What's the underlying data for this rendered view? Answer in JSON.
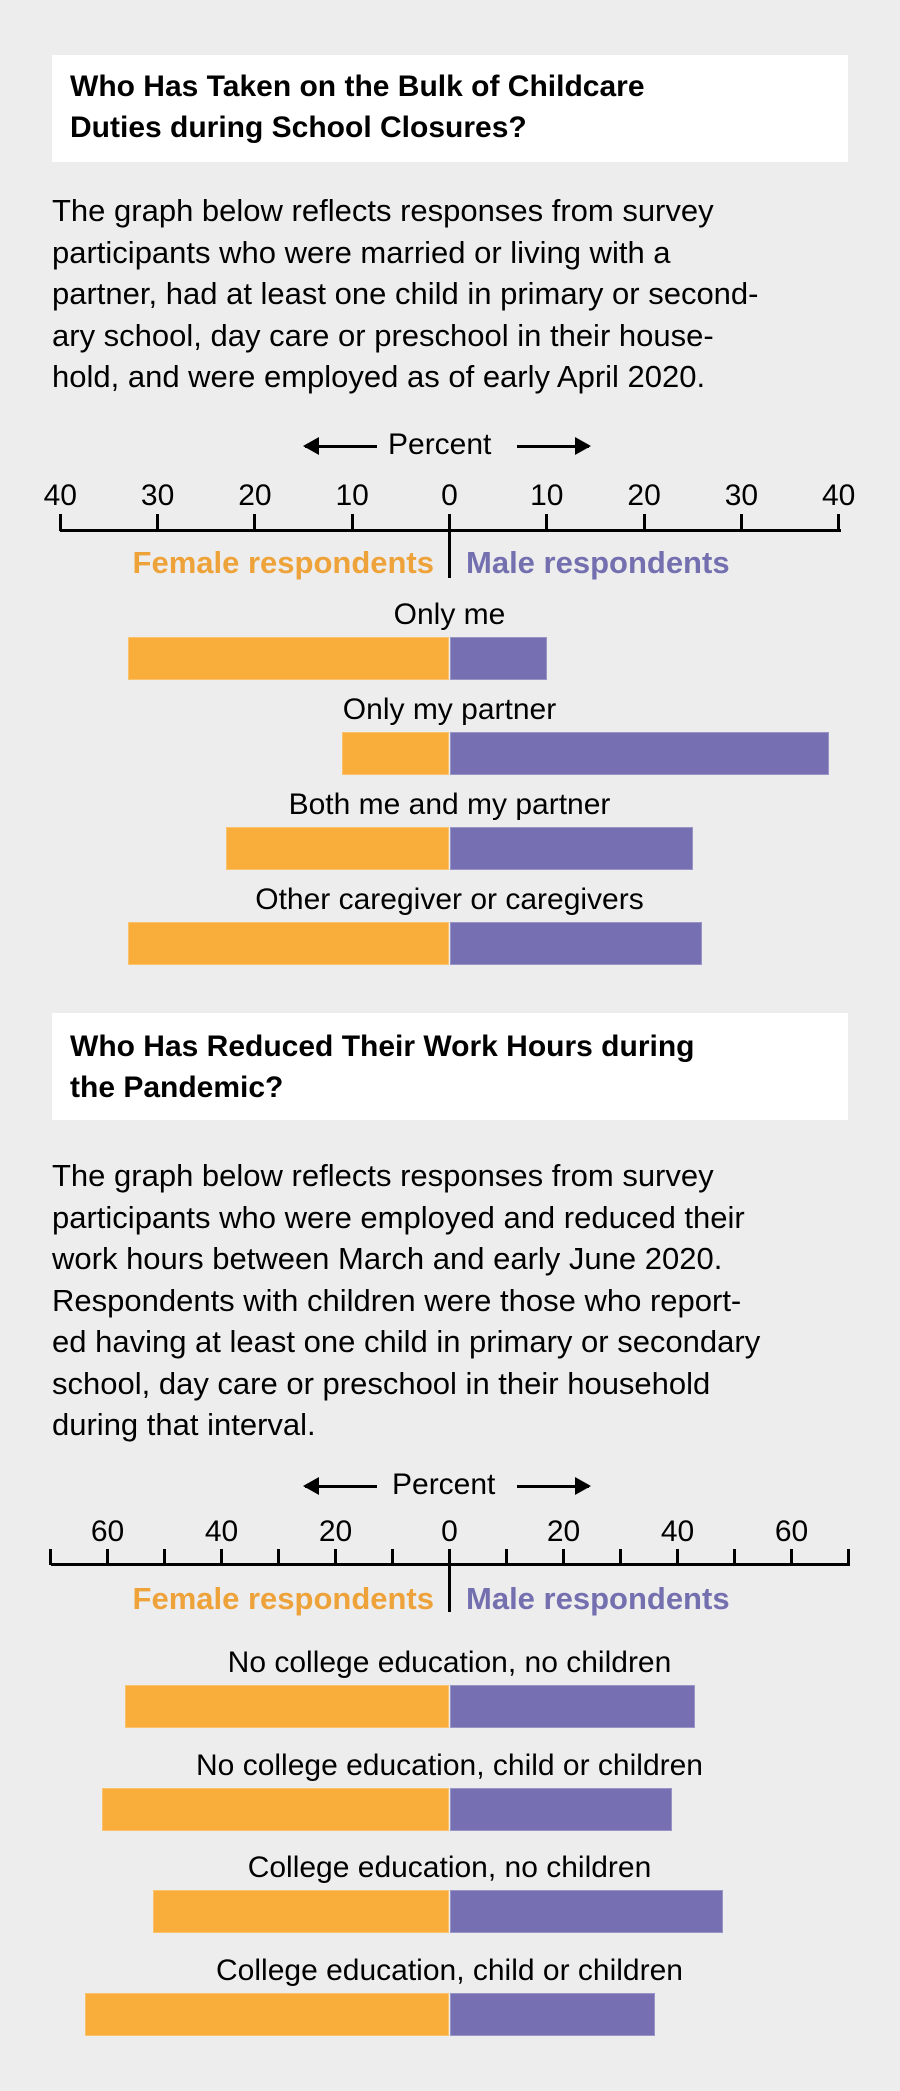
{
  "colors": {
    "background": "#ededed",
    "female": "#F9AE3B",
    "male": "#7670B2",
    "female_text": "#EEA23A",
    "male_text": "#7470B0"
  },
  "section1": {
    "title_lines": [
      "Who Has Taken on the Bulk of Childcare",
      "Duties during School Closures?"
    ],
    "body_lines": [
      "The graph below reflects responses from survey",
      "participants who were married or living with a",
      "partner, had at least one child in primary or second-",
      "ary school, day care or preschool in their house-",
      "hold, and were employed as of early April 2020."
    ],
    "axis_title": "Percent",
    "tick_labels": [
      "40",
      "30",
      "20",
      "10",
      "0",
      "10",
      "20",
      "30",
      "40"
    ],
    "legend_female": "Female respondents",
    "legend_male": "Male respondents",
    "rows": [
      {
        "label": "Only me",
        "female": 33,
        "male": 10
      },
      {
        "label": "Only my partner",
        "female": 11,
        "male": 39
      },
      {
        "label": "Both me and my partner",
        "female": 23,
        "male": 25
      },
      {
        "label": "Other caregiver or caregivers",
        "female": 33,
        "male": 26
      }
    ]
  },
  "section2": {
    "title_lines": [
      "Who Has Reduced Their Work Hours during",
      "the Pandemic?"
    ],
    "body_lines": [
      "The graph below reflects responses from survey",
      "participants who were employed and reduced their",
      "work hours between March and early June 2020.",
      "Respondents with children were those who report-",
      "ed having at least one child in primary or secondary",
      "school, day care or preschool in their household",
      "during that interval."
    ],
    "axis_title": "Percent",
    "tick_labels": [
      "60",
      "40",
      "20",
      "0",
      "20",
      "40",
      "60"
    ],
    "legend_female": "Female respondents",
    "legend_male": "Male respondents",
    "rows": [
      {
        "label": "No college education, no children",
        "female": 57,
        "male": 43
      },
      {
        "label": "No college education, child or children",
        "female": 61,
        "male": 39
      },
      {
        "label": "College education, no children",
        "female": 52,
        "male": 48
      },
      {
        "label": "College education, child or children",
        "female": 64,
        "male": 36
      }
    ]
  },
  "chart_data": [
    {
      "type": "bar",
      "orientation": "horizontal-diverging",
      "title": "Who Has Taken on the Bulk of Childcare Duties during School Closures?",
      "xlabel": "Percent",
      "ylabel": "",
      "xlim": [
        -40,
        40
      ],
      "x_ticks": [
        40,
        30,
        20,
        10,
        0,
        10,
        20,
        30,
        40
      ],
      "grid": false,
      "legend": [
        "Female respondents",
        "Male respondents"
      ],
      "legend_position": "top, split at zero",
      "categories": [
        "Only me",
        "Only my partner",
        "Both me and my partner",
        "Other caregiver or caregivers"
      ],
      "series": [
        {
          "name": "Female respondents",
          "color": "#F9AE3B",
          "direction": "left",
          "values": [
            33,
            11,
            23,
            33
          ]
        },
        {
          "name": "Male respondents",
          "color": "#7670B2",
          "direction": "right",
          "values": [
            10,
            39,
            25,
            26
          ]
        }
      ]
    },
    {
      "type": "bar",
      "orientation": "horizontal-diverging",
      "title": "Who Has Reduced Their Work Hours during the Pandemic?",
      "xlabel": "Percent",
      "ylabel": "",
      "xlim": [
        -70,
        70
      ],
      "x_ticks": [
        60,
        40,
        20,
        0,
        20,
        40,
        60
      ],
      "x_minor_ticks_every": 10,
      "grid": false,
      "legend": [
        "Female respondents",
        "Male respondents"
      ],
      "legend_position": "top, split at zero",
      "categories": [
        "No college education, no children",
        "No college education, child or children",
        "College education, no children",
        "College education, child or children"
      ],
      "series": [
        {
          "name": "Female respondents",
          "color": "#F9AE3B",
          "direction": "left",
          "values": [
            57,
            61,
            52,
            64
          ]
        },
        {
          "name": "Male respondents",
          "color": "#7670B2",
          "direction": "right",
          "values": [
            43,
            39,
            48,
            36
          ]
        }
      ]
    }
  ]
}
